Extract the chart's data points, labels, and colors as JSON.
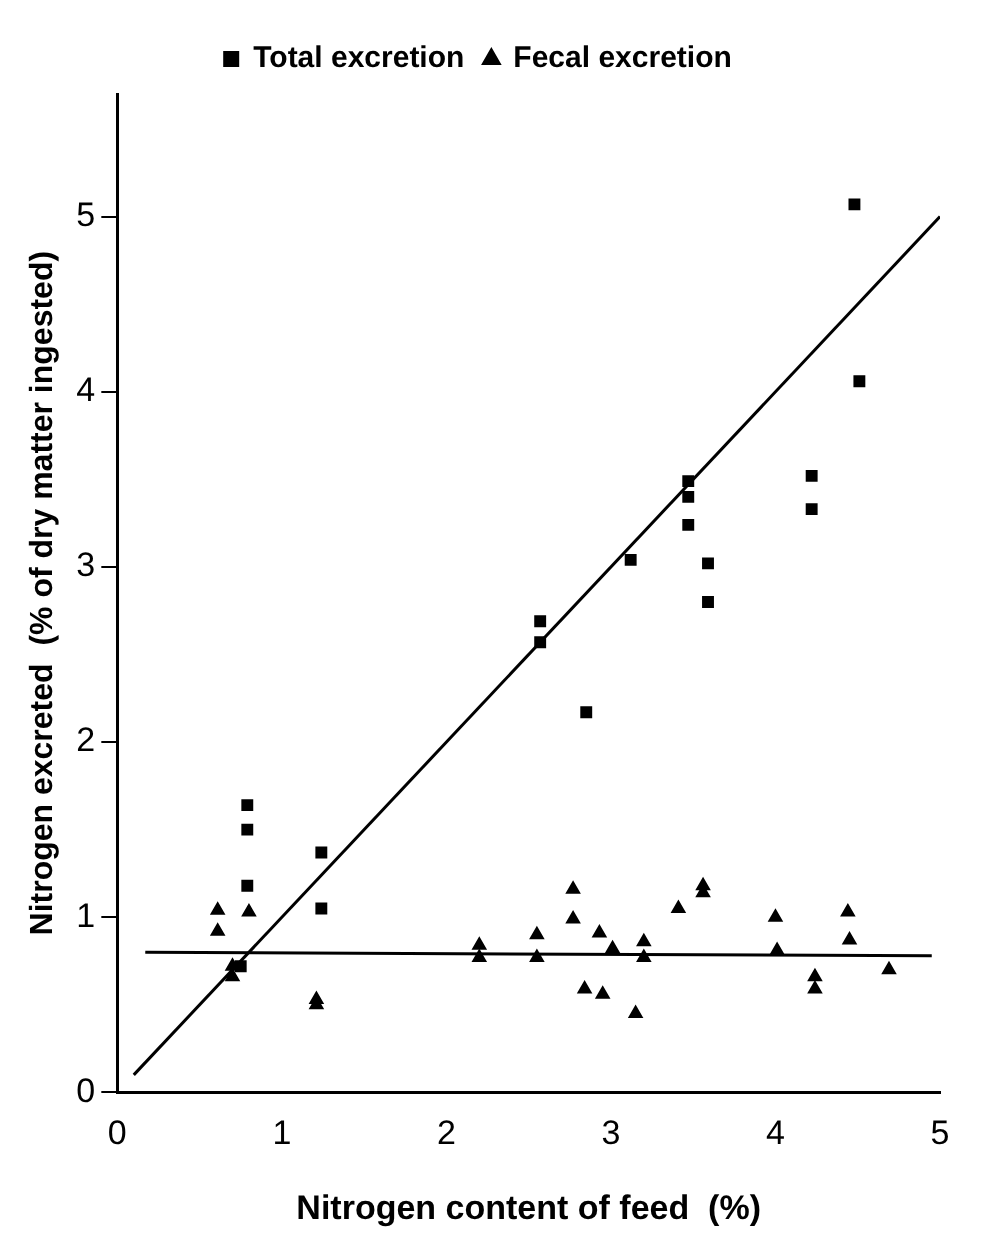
{
  "chart_data": {
    "type": "scatter",
    "xlabel": "Nitrogen content of feed  (%)",
    "ylabel": "Nitrogen excreted  (% of dry matter ingested)",
    "xlim": [
      0,
      5
    ],
    "ylim": [
      0,
      5.7
    ],
    "xticks": [
      0,
      1,
      2,
      3,
      4,
      5
    ],
    "yticks": [
      0,
      1,
      2,
      3,
      4,
      5
    ],
    "grid": false,
    "legend": "top",
    "series": [
      {
        "name": "Total excretion",
        "color": "#000000",
        "marker": "square",
        "x": [
          4.48,
          4.51,
          4.22,
          4.22,
          3.47,
          3.47,
          3.47,
          3.59,
          3.59,
          3.12,
          2.57,
          2.57,
          2.85,
          0.79,
          0.79,
          0.79,
          1.24,
          1.24,
          0.75
        ],
        "values": [
          5.07,
          4.06,
          3.52,
          3.33,
          3.49,
          3.4,
          3.24,
          3.02,
          2.8,
          3.04,
          2.69,
          2.57,
          2.17,
          1.64,
          1.5,
          1.18,
          1.37,
          1.05,
          0.72
        ]
      },
      {
        "name": "Fecal excretion",
        "color": "#000000",
        "marker": "triangle",
        "x": [
          0.61,
          0.61,
          0.8,
          0.7,
          0.7,
          1.21,
          1.21,
          2.2,
          2.2,
          2.55,
          2.55,
          2.77,
          2.77,
          2.93,
          2.84,
          2.95,
          3.01,
          3.15,
          3.2,
          3.2,
          3.41,
          3.56,
          3.56,
          4.0,
          4.01,
          4.24,
          4.24,
          4.44,
          4.45,
          4.69
        ],
        "values": [
          1.04,
          0.92,
          1.03,
          0.72,
          0.66,
          0.53,
          0.5,
          0.84,
          0.77,
          0.9,
          0.77,
          1.16,
          0.99,
          0.91,
          0.59,
          0.56,
          0.82,
          0.45,
          0.86,
          0.77,
          1.05,
          1.18,
          1.14,
          1.0,
          0.81,
          0.66,
          0.59,
          1.03,
          0.87,
          0.7
        ]
      },
      {
        "type": "line",
        "color": "#000000",
        "marker": "none",
        "line_style": "solid",
        "x": [
          0.1,
          5
        ],
        "values": [
          0.1,
          5
        ]
      },
      {
        "type": "line",
        "color": "#000000",
        "marker": "none",
        "line_style": "solid",
        "x": [
          0.17,
          4.95
        ],
        "values": [
          0.8,
          0.78
        ]
      }
    ]
  }
}
